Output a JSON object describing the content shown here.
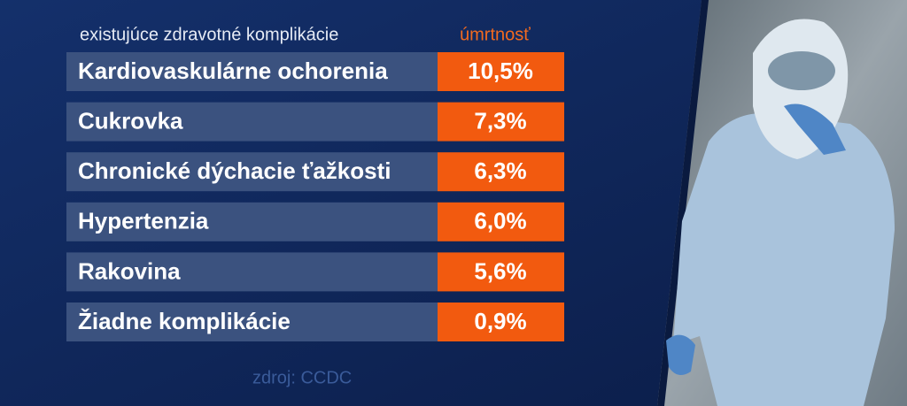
{
  "header": {
    "condition": "existujúce zdravotné komplikácie",
    "mortality": "úmrtnosť"
  },
  "table": {
    "rows": [
      [
        "Kardiovaskulárne ochorenia",
        "10,5%"
      ],
      [
        "Cukrovka",
        "7,3%"
      ],
      [
        "Chronické dýchacie ťažkosti",
        "6,3%"
      ],
      [
        "Hypertenzia",
        "6,0%"
      ],
      [
        "Rakovina",
        "5,6%"
      ],
      [
        "Žiadne komplikácie",
        "0,9%"
      ]
    ]
  },
  "source": "zdroj: CCDC"
}
